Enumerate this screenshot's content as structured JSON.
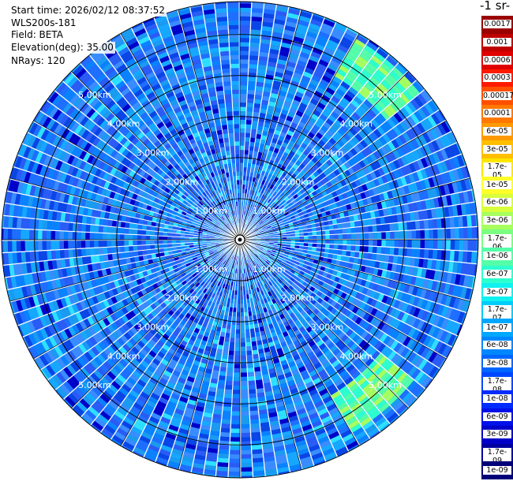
{
  "header": {
    "start_time": "Start time: 2026/02/12 08:37:52",
    "instrument": "WLS200s-181",
    "field": "Field: BETA",
    "elevation": "Elevation(deg): 35.00",
    "nrays": "NRays: 120"
  },
  "chart_data": {
    "type": "heatmap",
    "projection": "polar-ppi",
    "title": "",
    "nrays": 120,
    "max_range_km": 5.8,
    "range_rings_km": [
      1,
      2,
      3,
      4,
      5
    ],
    "ring_labels": [
      "1.00km",
      "2.00km",
      "3.00km",
      "4.00km",
      "5.00km"
    ],
    "background_level_range": [
      "1e-08",
      "1.7e-07"
    ],
    "features": [
      {
        "description_level": "3e-06",
        "azimuth_deg": [
          30,
          50
        ],
        "range_km": [
          4.6,
          5.6
        ]
      },
      {
        "description_level": "3e-06",
        "azimuth_deg": [
          130,
          150
        ],
        "range_km": [
          4.4,
          5.4
        ]
      }
    ],
    "colorbar": {
      "label": "-1 sr-",
      "levels": [
        "0.0017",
        "0.001",
        "0.0006",
        "0.0003",
        "0.00017",
        "0.0001",
        "6e-05",
        "3e-05",
        "1.7e-05",
        "1e-05",
        "6e-06",
        "3e-06",
        "1.7e-06",
        "1e-06",
        "6e-07",
        "3e-07",
        "1.7e-07",
        "1e-07",
        "6e-08",
        "3e-08",
        "1.7e-08",
        "1e-08",
        "6e-09",
        "3e-09",
        "1.7e-09",
        "1e-09"
      ],
      "colors": [
        "#9a0000",
        "#c00000",
        "#e00000",
        "#ff1a00",
        "#ff5000",
        "#ff7800",
        "#ff9a00",
        "#ffbf00",
        "#ffe600",
        "#ffff2a",
        "#d8ff3c",
        "#a6ff5e",
        "#7bff82",
        "#55ffa8",
        "#2effcf",
        "#10f2f0",
        "#00cdfa",
        "#00a7ff",
        "#0087ff",
        "#0066ff",
        "#0048ff",
        "#002cff",
        "#0010e8",
        "#0000c8",
        "#0000a0",
        "#000078"
      ]
    }
  }
}
